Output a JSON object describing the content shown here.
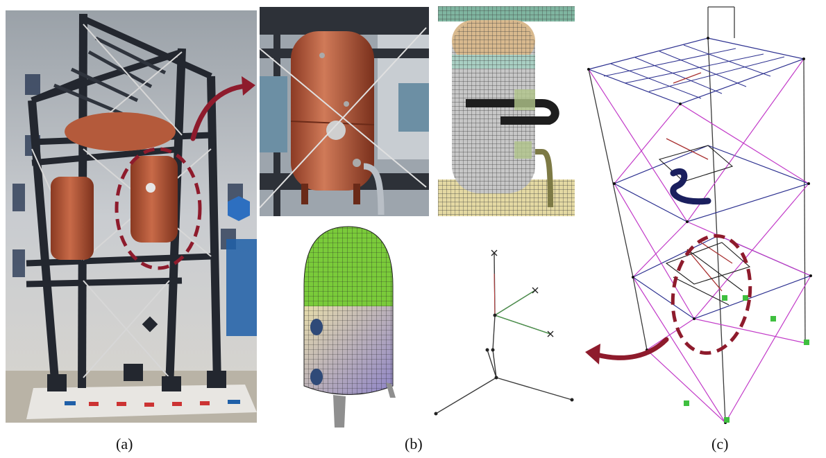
{
  "captions": {
    "a": "(a)",
    "b": "(b)",
    "c": "(c)"
  },
  "colors": {
    "highlight": "#8e1b2c",
    "steel": "#2a2f3a",
    "tank": "#b8583c",
    "mesh_top": "#7acb3a",
    "mesh_bottom": "#b5a9d3",
    "model_blue": "#2b2f8f",
    "model_magenta": "#c23ac8"
  },
  "panels": {
    "a": {
      "name": "shake-table-photo"
    },
    "b_photo": {
      "name": "tank-closeup-photo"
    },
    "b_mesh_scene": {
      "name": "tank-fe-mesh-assembly"
    },
    "b_mesh_tank": {
      "name": "tank-fe-mesh"
    },
    "b_stick": {
      "name": "tank-stick-model"
    },
    "c": {
      "name": "frame-fe-model"
    }
  }
}
